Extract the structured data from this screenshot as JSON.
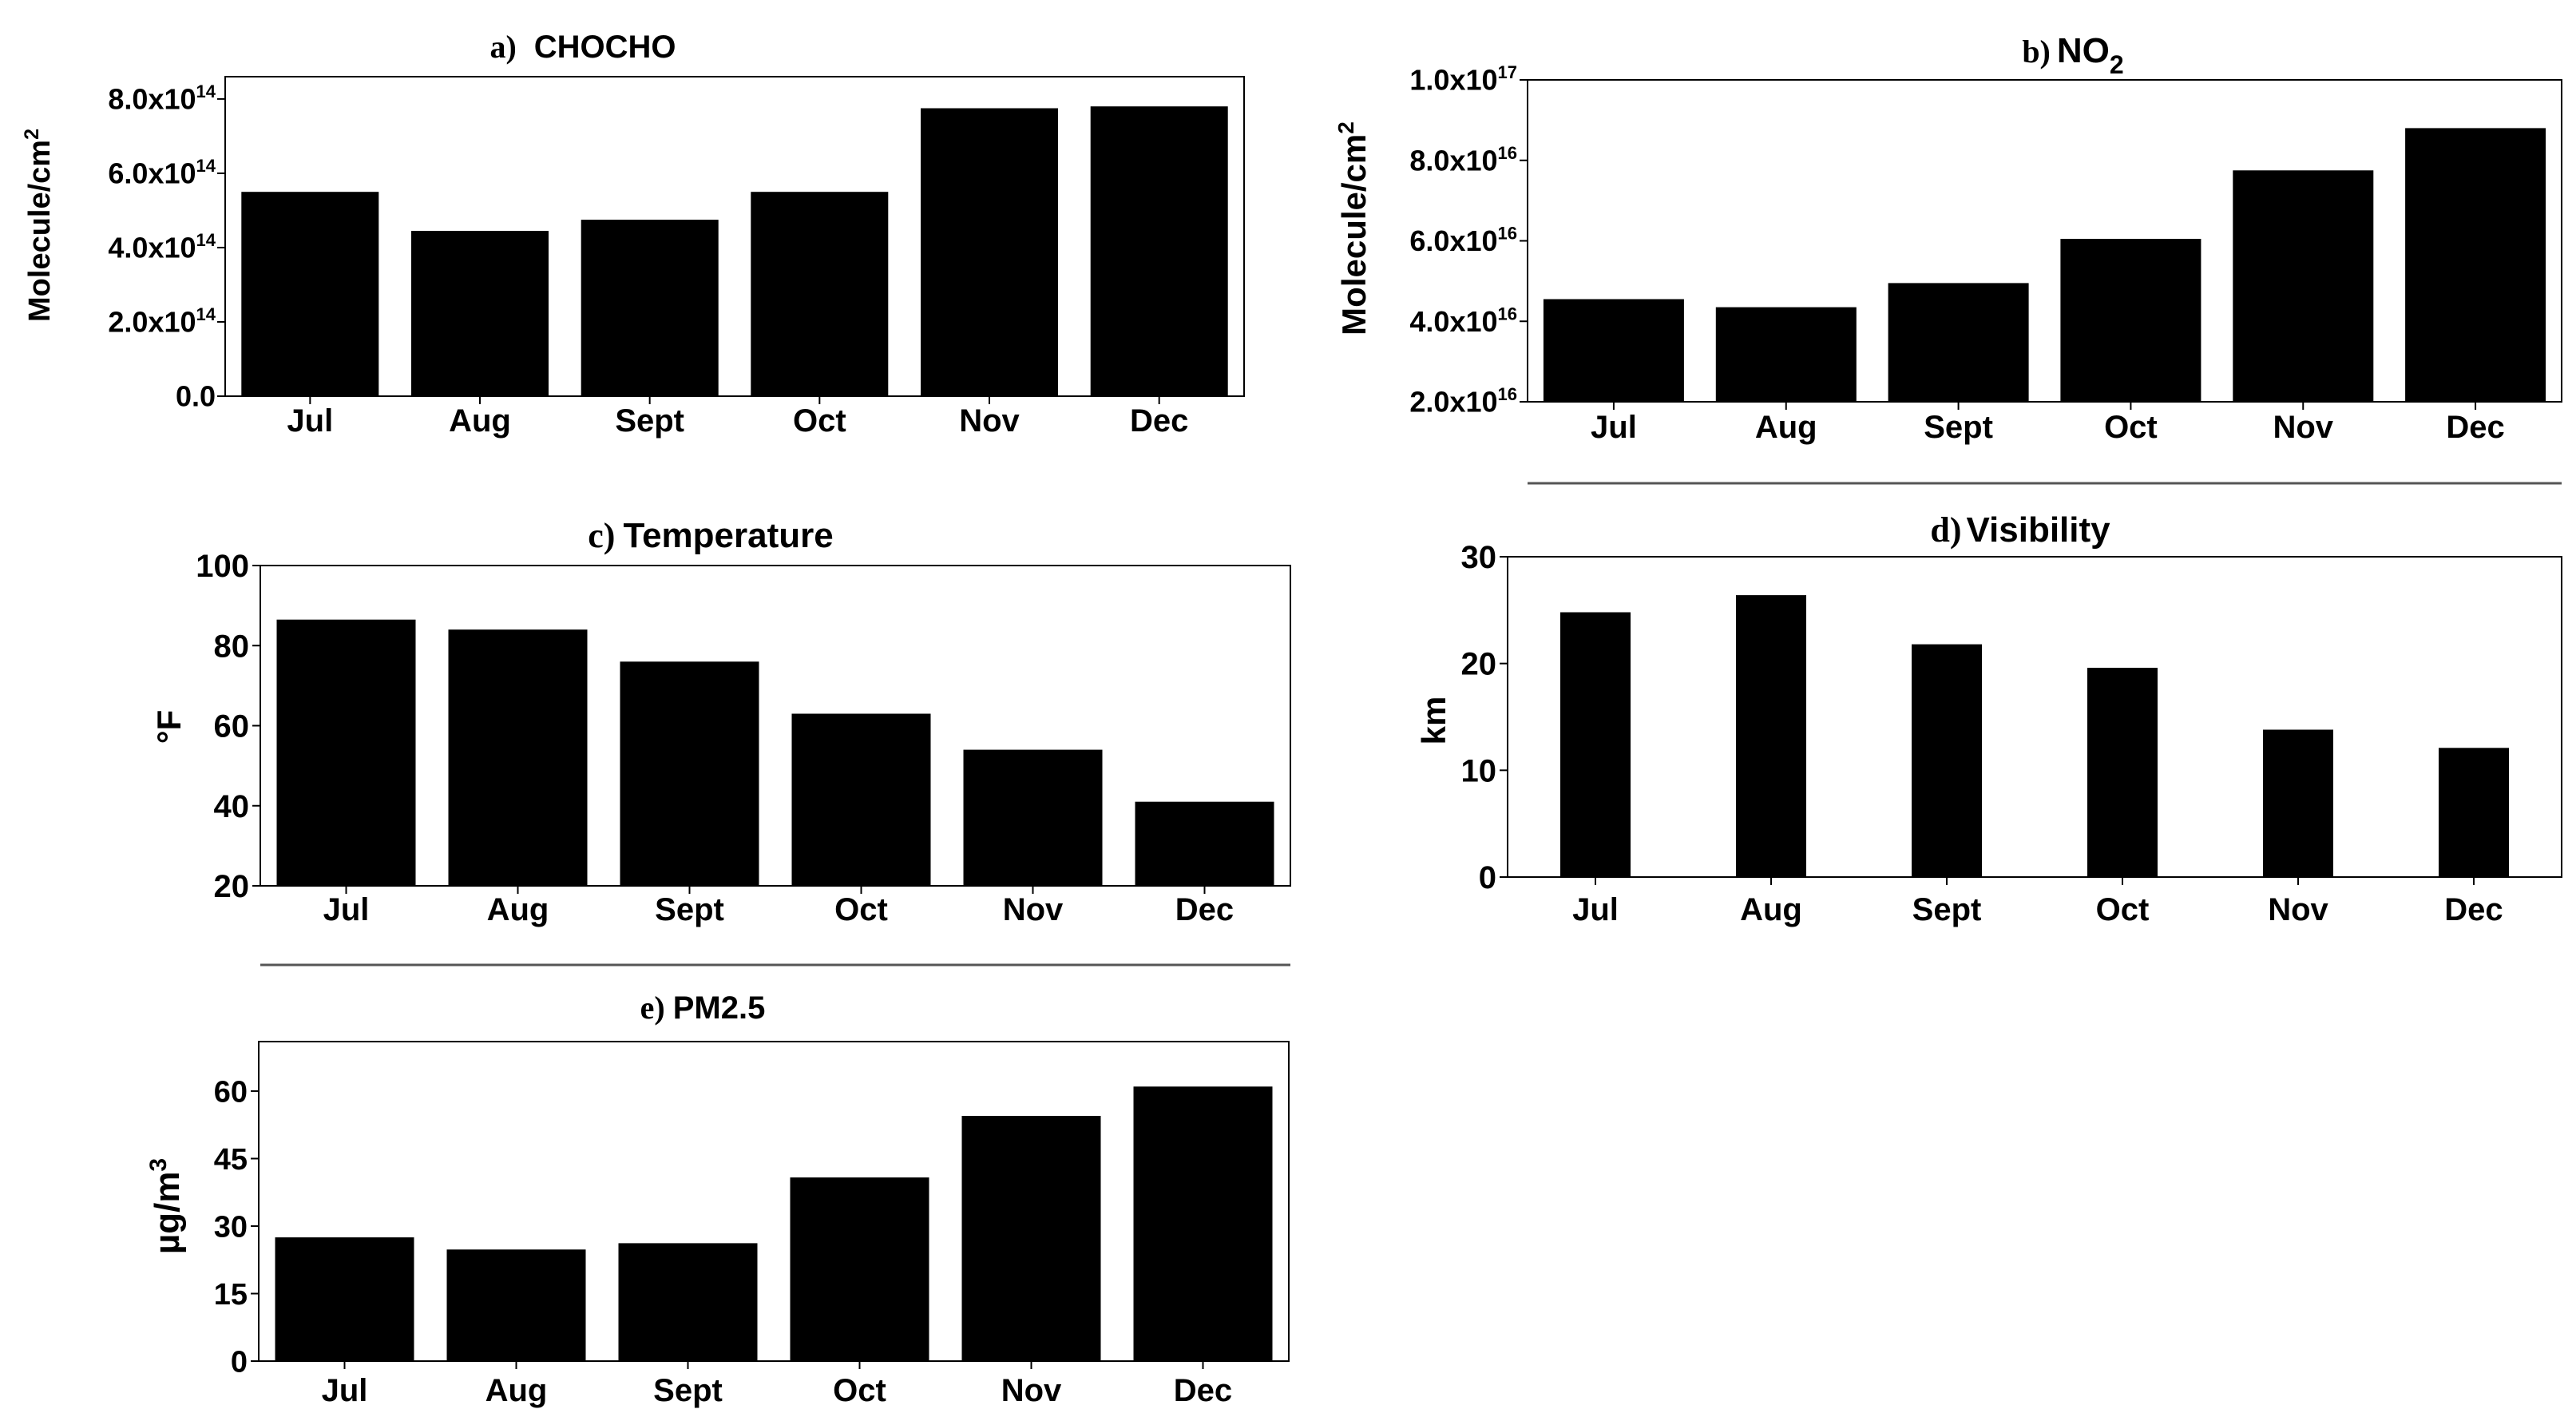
{
  "chart_data": [
    {
      "id": "a",
      "type": "bar",
      "title_letter": "a)",
      "title": "CHOCHO",
      "categories": [
        "Jul",
        "Aug",
        "Sept",
        "Oct",
        "Nov",
        "Dec"
      ],
      "values": [
        550000000000000.0,
        445000000000000.0,
        475000000000000.0,
        550000000000000.0,
        775000000000000.0,
        780000000000000.0
      ],
      "ylim": [
        0,
        860000000000000.0
      ],
      "yticks": [
        0,
        200000000000000.0,
        400000000000000.0,
        600000000000000.0,
        800000000000000.0
      ],
      "ytick_labels": [
        "0.0",
        "2.0x10",
        "4.0x10",
        "6.0x10",
        "8.0x10"
      ],
      "ytick_exps": [
        "",
        "14",
        "14",
        "14",
        "14"
      ],
      "ylabel": "Molecule/cm",
      "ylabel_sup": "2",
      "xlabel": ""
    },
    {
      "id": "b",
      "type": "bar",
      "title_letter": "b)",
      "title": "NO",
      "title_sub": "2",
      "categories": [
        "Jul",
        "Aug",
        "Sept",
        "Oct",
        "Nov",
        "Dec"
      ],
      "values": [
        4.55e+16,
        4.35e+16,
        4.95e+16,
        6.05e+16,
        7.75e+16,
        8.8e+16
      ],
      "ylim": [
        2e+16,
        1e+17
      ],
      "yticks": [
        2e+16,
        4e+16,
        6e+16,
        8e+16,
        1e+17
      ],
      "ytick_labels": [
        "2.0x10",
        "4.0x10",
        "6.0x10",
        "8.0x10",
        "1.0x10"
      ],
      "ytick_exps": [
        "16",
        "16",
        "16",
        "16",
        "17"
      ],
      "ylabel": "Molecule/cm",
      "ylabel_sup": "2",
      "xlabel": ""
    },
    {
      "id": "c",
      "type": "bar",
      "title_letter": "c)",
      "title": "Temperature",
      "categories": [
        "Jul",
        "Aug",
        "Sept",
        "Oct",
        "Nov",
        "Dec"
      ],
      "values": [
        86.5,
        84,
        76,
        63,
        54,
        41
      ],
      "ylim": [
        20,
        100
      ],
      "yticks": [
        20,
        40,
        60,
        80,
        100
      ],
      "ytick_labels": [
        "20",
        "40",
        "60",
        "80",
        "100"
      ],
      "ytick_exps": [
        "",
        "",
        "",
        "",
        ""
      ],
      "ylabel": "°F",
      "ylabel_sup": "",
      "xlabel": ""
    },
    {
      "id": "d",
      "type": "bar",
      "title_letter": "d)",
      "title": "Visibility",
      "categories": [
        "Jul",
        "Aug",
        "Sept",
        "Oct",
        "Nov",
        "Dec"
      ],
      "values": [
        24.8,
        26.4,
        21.8,
        19.6,
        13.8,
        12.1
      ],
      "ylim": [
        0,
        30
      ],
      "yticks": [
        0,
        10,
        20,
        30
      ],
      "ytick_labels": [
        "0",
        "10",
        "20",
        "30"
      ],
      "ytick_exps": [
        "",
        "",
        "",
        ""
      ],
      "ylabel": "km",
      "ylabel_sup": "",
      "xlabel": ""
    },
    {
      "id": "e",
      "type": "bar",
      "title_letter": "e)",
      "title": "PM2.5",
      "categories": [
        "Jul",
        "Aug",
        "Sept",
        "Oct",
        "Nov",
        "Dec"
      ],
      "values": [
        27.5,
        24.8,
        26.2,
        40.8,
        54.5,
        61
      ],
      "ylim": [
        0,
        71
      ],
      "yticks": [
        0,
        15,
        30,
        45,
        60
      ],
      "ytick_labels": [
        "0",
        "15",
        "30",
        "45",
        "60"
      ],
      "ytick_exps": [
        "",
        "",
        "",
        "",
        ""
      ],
      "ylabel": "µg/m",
      "ylabel_sup": "3",
      "xlabel": ""
    }
  ]
}
